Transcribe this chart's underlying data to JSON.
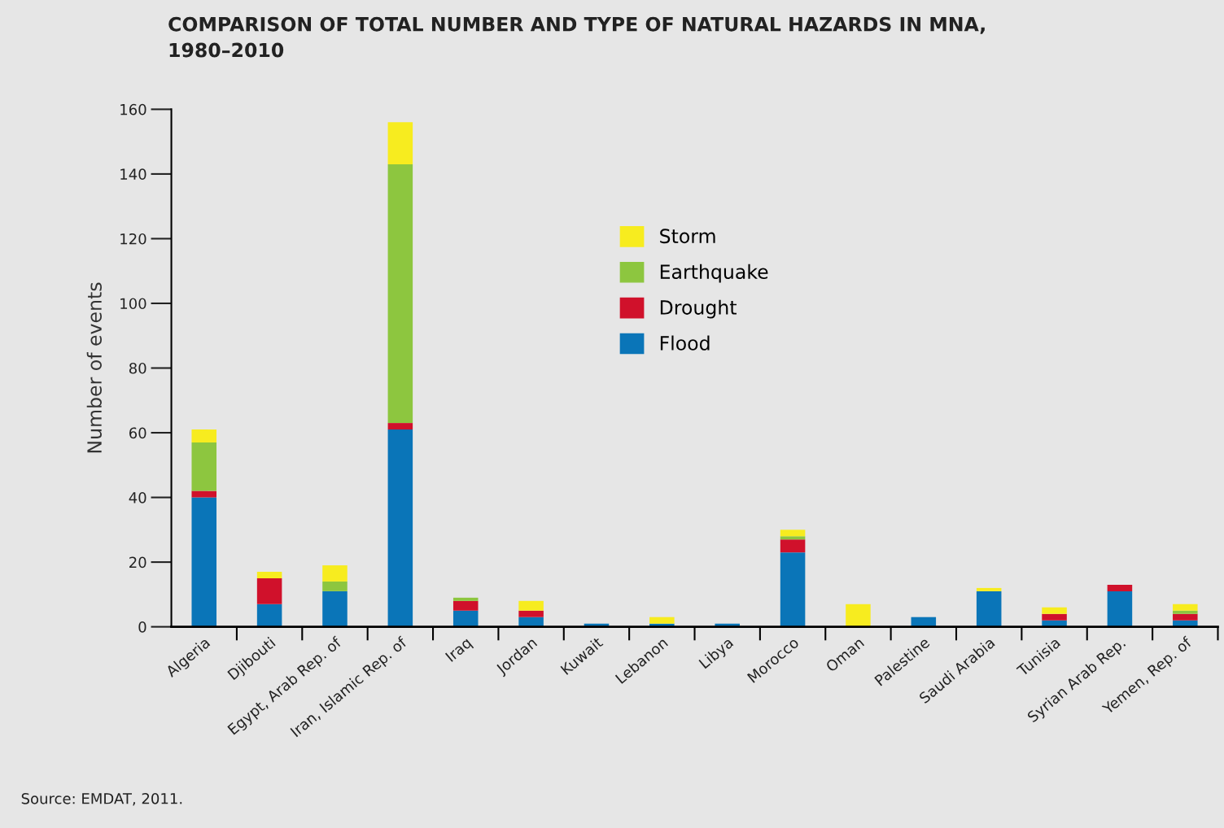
{
  "chart_data": {
    "type": "bar",
    "stacked": true,
    "title": "COMPARISON OF TOTAL NUMBER AND TYPE OF NATURAL HAZARDS IN MNA,\n1980–2010",
    "ylabel": "Number of events",
    "categories": [
      "Algeria",
      "Djibouti",
      "Egypt, Arab Rep. of",
      "Iran, Islamic Rep. of",
      "Iraq",
      "Jordan",
      "Kuwait",
      "Lebanon",
      "Libya",
      "Morocco",
      "Oman",
      "Palestine",
      "Saudi Arabia",
      "Tunisia",
      "Syrian Arab Rep.",
      "Yemen, Rep. of"
    ],
    "series": [
      {
        "name": "Flood",
        "color": "#0a75b8",
        "values": [
          40,
          7,
          11,
          61,
          5,
          3,
          1,
          1,
          1,
          23,
          0,
          3,
          11,
          2,
          11,
          2
        ]
      },
      {
        "name": "Drought",
        "color": "#d0112b",
        "values": [
          2,
          8,
          0,
          2,
          3,
          2,
          0,
          0,
          0,
          4,
          0,
          0,
          0,
          2,
          2,
          2
        ]
      },
      {
        "name": "Earthquake",
        "color": "#8dc63f",
        "values": [
          15,
          0,
          3,
          80,
          1,
          0,
          0,
          0,
          0,
          1,
          0,
          0,
          0,
          0,
          0,
          1
        ]
      },
      {
        "name": "Storm",
        "color": "#f7ec1f",
        "values": [
          4,
          2,
          5,
          13,
          0,
          3,
          0,
          2,
          0,
          2,
          7,
          0,
          1,
          2,
          0,
          2
        ]
      }
    ],
    "ylim": [
      0,
      160
    ],
    "yticks": [
      0,
      20,
      40,
      60,
      80,
      100,
      120,
      140,
      160
    ],
    "grid": false,
    "legend": "center",
    "annotations": [
      "Source: EMDAT, 2011."
    ]
  }
}
